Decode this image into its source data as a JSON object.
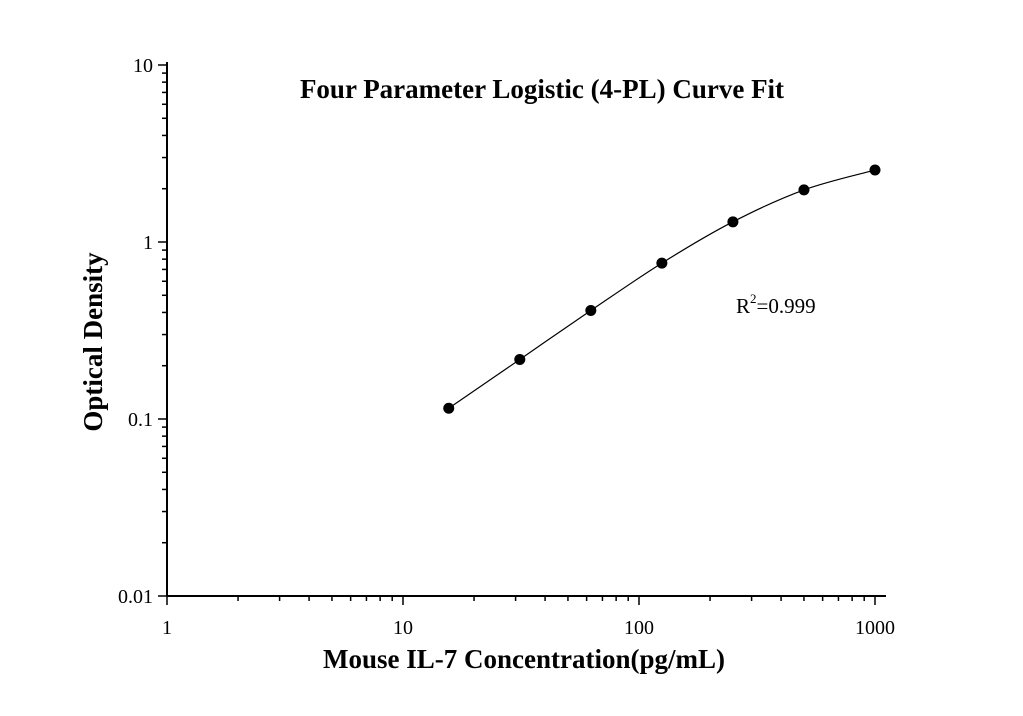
{
  "chart_data": {
    "type": "scatter",
    "title": "Four Parameter Logistic (4-PL) Curve Fit",
    "xlabel": "Mouse IL-7 Concentration(pg/mL)",
    "ylabel": "Optical Density",
    "xscale": "log",
    "yscale": "log",
    "xlim": [
      1,
      1000
    ],
    "ylim": [
      0.01,
      10
    ],
    "xticks": [
      "1",
      "10",
      "100",
      "1000"
    ],
    "yticks": [
      "0.01",
      "0.1",
      "1",
      "10"
    ],
    "grid": false,
    "x": [
      15.625,
      31.25,
      62.5,
      125,
      250,
      500,
      1000
    ],
    "y": [
      0.115,
      0.217,
      0.41,
      0.76,
      1.3,
      1.97,
      2.55
    ],
    "fit": "4-PL curve",
    "annotation": {
      "base": "R",
      "sup": "2",
      "rest": "=0.999"
    },
    "colors": {
      "points": "#000000",
      "line": "#000000"
    }
  }
}
